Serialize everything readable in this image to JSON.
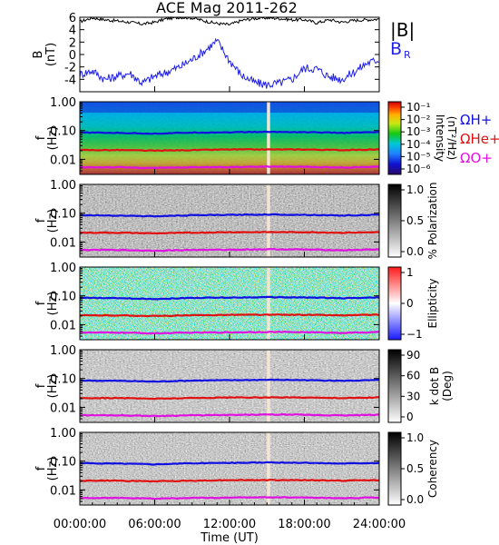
{
  "chart_data": {
    "type": "line",
    "title": "ACE Mag 2011-262",
    "xlabel": "Time (UT)",
    "x_tick_labels": [
      "00:00:00",
      "06:00:00",
      "12:00:00",
      "18:00:00",
      "24:00:00"
    ],
    "xlim_hours": [
      0,
      24
    ],
    "data_gap_hours": [
      15.0,
      15.25
    ],
    "panels": [
      {
        "id": "bfield",
        "type": "line",
        "ylabel": [
          "B",
          "(nT)"
        ],
        "ylim": [
          -6,
          6
        ],
        "y_tick_labels": [
          "6",
          "4",
          "2",
          "0",
          "-2",
          "-4"
        ],
        "legend": [
          "|B|",
          "B",
          "R"
        ],
        "series": [
          {
            "name": "|B|",
            "color": "#000000",
            "x": [
              0,
              1,
              2,
              3,
              4,
              5,
              6,
              7,
              8,
              9,
              10,
              11,
              12,
              13,
              14,
              15,
              16,
              17,
              18,
              19,
              20,
              21,
              22,
              23,
              24
            ],
            "y": [
              5.3,
              5.9,
              5.6,
              5.4,
              5.2,
              4.9,
              5.2,
              5.8,
              6.0,
              5.9,
              5.4,
              5.0,
              4.8,
              5.5,
              5.8,
              5.9,
              5.8,
              5.6,
              5.6,
              5.1,
              5.6,
              5.2,
              5.5,
              5.6,
              5.7
            ]
          },
          {
            "name": "B_R",
            "color": "#1f1fe8",
            "x": [
              0,
              1,
              2,
              3,
              4,
              5,
              6,
              7,
              8,
              9,
              10,
              11,
              12,
              13,
              14,
              15,
              16,
              17,
              18,
              19,
              20,
              21,
              22,
              23,
              24
            ],
            "y": [
              -3.2,
              -2.6,
              -4.0,
              -3.5,
              -3.0,
              -4.6,
              -3.5,
              -2.8,
              -2.0,
              -0.8,
              0.6,
              2.2,
              -1.0,
              -3.4,
              -4.5,
              -4.9,
              -4.6,
              -4.0,
              -2.2,
              -2.3,
              -3.6,
              -4.0,
              -2.8,
              -1.4,
              -0.8
            ]
          }
        ]
      },
      {
        "id": "intensity",
        "type": "heatmap",
        "ylabel": [
          "f",
          "(Hz)"
        ],
        "ylim": [
          0.003,
          1.0
        ],
        "y_scale": "log",
        "y_tick_labels": [
          "1.00",
          "0.10",
          "0.01"
        ],
        "colorbar_label": [
          "Intensity",
          "(nT²/Hz)"
        ],
        "colorbar_tick_labels": [
          "10⁻¹",
          "10⁻²",
          "10⁻³",
          "10⁻⁴",
          "10⁻⁵",
          "10⁻⁶"
        ],
        "colorbar_range": [
          -6,
          -0.5
        ],
        "legend": [
          "ΩH+",
          "ΩHe+",
          "ΩO+"
        ]
      },
      {
        "id": "polarization",
        "type": "heatmap",
        "ylabel": [
          "f",
          "(Hz)"
        ],
        "ylim": [
          0.003,
          1.0
        ],
        "y_scale": "log",
        "y_tick_labels": [
          "1.00",
          "0.10",
          "0.01"
        ],
        "colorbar_label": [
          "% Polarization"
        ],
        "colorbar_tick_labels": [
          "1.0",
          "0.5",
          "0.0"
        ],
        "colorbar_range": [
          0,
          1
        ]
      },
      {
        "id": "ellipticity",
        "type": "heatmap",
        "ylabel": [
          "f",
          "(Hz)"
        ],
        "ylim": [
          0.003,
          1.0
        ],
        "y_scale": "log",
        "y_tick_labels": [
          "1.00",
          "0.10",
          "0.01"
        ],
        "colorbar_label": [
          "Ellipticity"
        ],
        "colorbar_tick_labels": [
          "1",
          "0",
          "−1"
        ],
        "colorbar_range": [
          -1,
          1
        ]
      },
      {
        "id": "kdotb",
        "type": "heatmap",
        "ylabel": [
          "f",
          "(Hz)"
        ],
        "ylim": [
          0.003,
          1.0
        ],
        "y_scale": "log",
        "y_tick_labels": [
          "1.00",
          "0.10",
          "0.01"
        ],
        "colorbar_label": [
          "k dot B",
          "(Deg)"
        ],
        "colorbar_tick_labels": [
          "90",
          "60",
          "30",
          "0"
        ],
        "colorbar_range": [
          0,
          90
        ]
      },
      {
        "id": "coherency",
        "type": "heatmap",
        "ylabel": [
          "f",
          "(Hz)"
        ],
        "ylim": [
          0.003,
          1.0
        ],
        "y_scale": "log",
        "y_tick_labels": [
          "1.00",
          "0.10",
          "0.01"
        ],
        "colorbar_label": [
          "Coherency"
        ],
        "colorbar_tick_labels": [
          "1.0",
          "0.5",
          "0.0"
        ],
        "colorbar_range": [
          0,
          1
        ]
      }
    ],
    "gyrofrequency_lines": [
      {
        "name": "ΩH+",
        "color": "#1010e0",
        "x": [
          0,
          3,
          6,
          9,
          12,
          15,
          18,
          21,
          24
        ],
        "y": [
          0.085,
          0.083,
          0.078,
          0.085,
          0.087,
          0.09,
          0.088,
          0.083,
          0.088
        ]
      },
      {
        "name": "ΩHe+",
        "color": "#e01010",
        "x": [
          0,
          3,
          6,
          9,
          12,
          15,
          18,
          21,
          24
        ],
        "y": [
          0.021,
          0.021,
          0.02,
          0.021,
          0.022,
          0.022,
          0.022,
          0.021,
          0.022
        ]
      },
      {
        "name": "ΩO+",
        "color": "#e010e0",
        "x": [
          0,
          3,
          6,
          9,
          12,
          15,
          18,
          21,
          24
        ],
        "y": [
          0.0053,
          0.0053,
          0.005,
          0.0053,
          0.0054,
          0.0056,
          0.0055,
          0.0052,
          0.0055
        ]
      }
    ]
  }
}
